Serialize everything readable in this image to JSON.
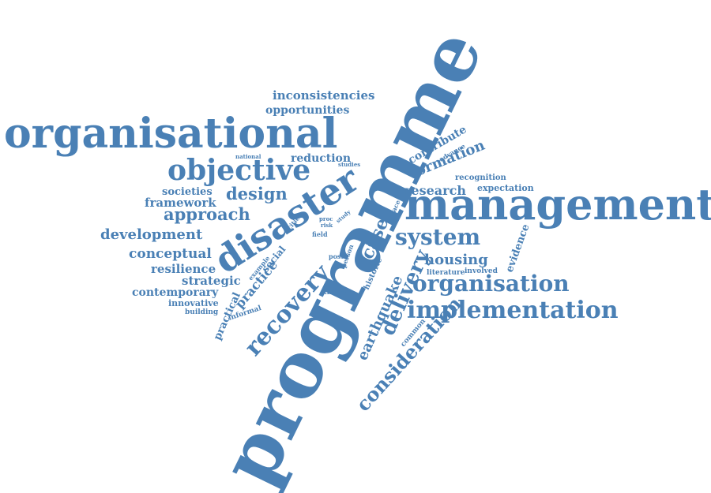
{
  "word_cloud": {
    "color": "#4a80b5",
    "words": [
      {
        "id": "programme",
        "text": "programme"
      },
      {
        "id": "management",
        "text": "management"
      },
      {
        "id": "organisational",
        "text": "organisational"
      },
      {
        "id": "disaster",
        "text": "disaster"
      },
      {
        "id": "objective",
        "text": "objective"
      },
      {
        "id": "implementation",
        "text": "implementation"
      },
      {
        "id": "organisation",
        "text": "organisation"
      },
      {
        "id": "system",
        "text": "system"
      },
      {
        "id": "recovery",
        "text": "recovery"
      },
      {
        "id": "delivery",
        "text": "delivery"
      },
      {
        "id": "case",
        "text": "case"
      },
      {
        "id": "consideration",
        "text": "consideration"
      },
      {
        "id": "earthquake",
        "text": "earthquake"
      },
      {
        "id": "development",
        "text": "development"
      },
      {
        "id": "approach",
        "text": "approach"
      },
      {
        "id": "design",
        "text": "design"
      },
      {
        "id": "conceptual",
        "text": "conceptual"
      },
      {
        "id": "formation",
        "text": "formation"
      },
      {
        "id": "research",
        "text": "research"
      },
      {
        "id": "housing",
        "text": "housing"
      },
      {
        "id": "inconsistencies",
        "text": "inconsistencies"
      },
      {
        "id": "opportunities",
        "text": "opportunities"
      },
      {
        "id": "reduction",
        "text": "reduction"
      },
      {
        "id": "societies",
        "text": "societies"
      },
      {
        "id": "framework",
        "text": "framework"
      },
      {
        "id": "resilience",
        "text": "resilience"
      },
      {
        "id": "strategic",
        "text": "strategic"
      },
      {
        "id": "contemporary",
        "text": "contemporary"
      },
      {
        "id": "innovative",
        "text": "innovative"
      },
      {
        "id": "building",
        "text": "building"
      },
      {
        "id": "practice",
        "text": "practice"
      },
      {
        "id": "practical",
        "text": "practical"
      },
      {
        "id": "social",
        "text": "social"
      },
      {
        "id": "contribute",
        "text": "contribute"
      },
      {
        "id": "advance",
        "text": "advance"
      },
      {
        "id": "recognition",
        "text": "recognition"
      },
      {
        "id": "expectation",
        "text": "expectation"
      },
      {
        "id": "evidence",
        "text": "evidence"
      },
      {
        "id": "literature",
        "text": "literature"
      },
      {
        "id": "involved",
        "text": "involved"
      },
      {
        "id": "historic",
        "text": "historic"
      },
      {
        "id": "common",
        "text": "common"
      },
      {
        "id": "theory",
        "text": "theory"
      },
      {
        "id": "informal",
        "text": "informal"
      },
      {
        "id": "example",
        "text": "example"
      },
      {
        "id": "cities",
        "text": "cities"
      },
      {
        "id": "field",
        "text": "field"
      },
      {
        "id": "post",
        "text": "post"
      },
      {
        "id": "person",
        "text": "person"
      },
      {
        "id": "study",
        "text": "study"
      },
      {
        "id": "risk",
        "text": "risk"
      },
      {
        "id": "proc",
        "text": "proc"
      },
      {
        "id": "place",
        "text": "place"
      },
      {
        "id": "national",
        "text": "national"
      },
      {
        "id": "studies",
        "text": "studies"
      }
    ]
  }
}
